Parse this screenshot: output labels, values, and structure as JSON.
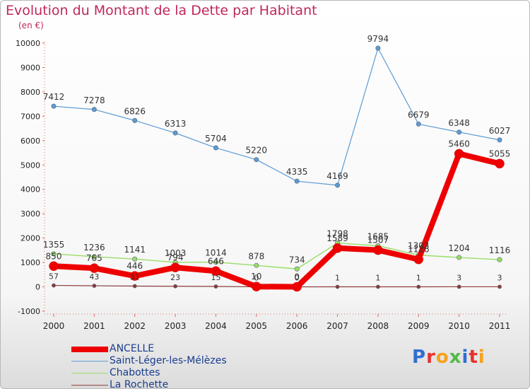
{
  "chart_data": {
    "type": "line",
    "title": "Evolution du Montant de la Dette par Habitant",
    "subtitle": "(en €)",
    "x": [
      "2000",
      "2001",
      "2002",
      "2003",
      "2004",
      "2005",
      "2006",
      "2007",
      "2008",
      "2009",
      "2010",
      "2011"
    ],
    "ylim": [
      -1000,
      10000
    ],
    "yticks": [
      -1000,
      0,
      1000,
      2000,
      3000,
      4000,
      5000,
      6000,
      7000,
      8000,
      9000,
      10000
    ],
    "grid": false,
    "legend_position": "bottom-left",
    "series": [
      {
        "name": "ANCELLE",
        "color": "#ee0000",
        "values": [
          850,
          765,
          446,
          794,
          646,
          10,
          0,
          1589,
          1507,
          1126,
          5460,
          5055
        ],
        "labels": [
          "850",
          "765",
          "446",
          "794",
          "646",
          "10",
          "0",
          "1589",
          "1507",
          "1126",
          "5460",
          "5055"
        ]
      },
      {
        "name": "Saint-Léger-les-Mélèzes",
        "color": "#5b9bd5",
        "values": [
          7412,
          7278,
          6826,
          6313,
          5704,
          5220,
          4335,
          4169,
          9794,
          6679,
          6348,
          6027
        ],
        "labels": [
          "7412",
          "7278",
          "6826",
          "6313",
          "5704",
          "5220",
          "4335",
          "4169",
          "9794",
          "6679",
          "6348",
          "6027"
        ]
      },
      {
        "name": "Chabottes",
        "color": "#99dd66",
        "values": [
          1355,
          1236,
          1141,
          1003,
          1014,
          878,
          734,
          1798,
          1685,
          1303,
          1204,
          1116
        ],
        "labels": [
          "1355",
          "1236",
          "1141",
          "1003",
          "1014",
          "878",
          "734",
          "1798",
          "1685",
          "1303",
          "1204",
          "1116"
        ]
      },
      {
        "name": "La Rochette",
        "color": "#8b3a3a",
        "values": [
          57,
          43,
          31,
          23,
          15,
          0,
          0,
          1,
          1,
          1,
          3,
          3
        ],
        "labels": [
          "57",
          "43",
          "31",
          "23",
          "15",
          "0",
          "0",
          "1",
          "1",
          "1",
          "3",
          "3"
        ]
      }
    ]
  },
  "logo": {
    "text": "Proxiti",
    "colors": [
      "#2f6fd1",
      "#e8322d",
      "#f7a21b",
      "#54b948",
      "#2f6fd1",
      "#e8322d",
      "#f7a21b"
    ]
  }
}
